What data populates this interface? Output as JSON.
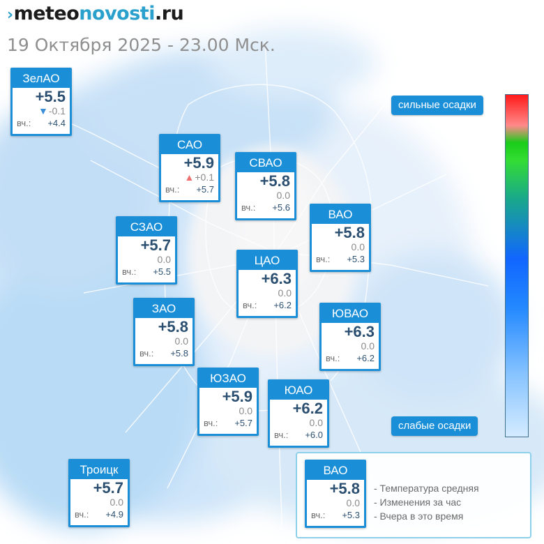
{
  "brand": {
    "mark": "›",
    "part1": "meteo",
    "part2": "novosti",
    "part3": ".ru"
  },
  "datetime": "19 Октября 2025 - 23.00 Мск.",
  "scale": {
    "top_label": "сильные осадки",
    "bottom_label": "слабые осадки"
  },
  "colors": {
    "card_accent": "#1a8fd8",
    "temp_text": "#2b4f70",
    "up_arrow": "#f07070",
    "down_arrow": "#3a8fd8",
    "scale_border": "#3f6f8f",
    "legend_border": "#8ed0ea"
  },
  "districts": [
    {
      "id": "zelao",
      "name": "ЗелАО",
      "temp": "+5.5",
      "trend": "down",
      "trend_icon": "down-triangle-icon",
      "change": "-0.1",
      "yesterday_label": "вч.:",
      "yesterday": "+4.4"
    },
    {
      "id": "sao",
      "name": "САО",
      "temp": "+5.9",
      "trend": "up",
      "trend_icon": "up-triangle-icon",
      "change": "+0.1",
      "yesterday_label": "вч.:",
      "yesterday": "+5.7"
    },
    {
      "id": "svao",
      "name": "СВАО",
      "temp": "+5.8",
      "trend": "none",
      "change": "0.0",
      "yesterday_label": "вч.:",
      "yesterday": "+5.6"
    },
    {
      "id": "szao",
      "name": "СЗАО",
      "temp": "+5.7",
      "trend": "none",
      "change": "0.0",
      "yesterday_label": "вч.:",
      "yesterday": "+5.5"
    },
    {
      "id": "vao",
      "name": "ВАО",
      "temp": "+5.8",
      "trend": "none",
      "change": "0.0",
      "yesterday_label": "вч.:",
      "yesterday": "+5.3"
    },
    {
      "id": "cao",
      "name": "ЦАО",
      "temp": "+6.3",
      "trend": "none",
      "change": "0.0",
      "yesterday_label": "вч.:",
      "yesterday": "+6.2"
    },
    {
      "id": "zao",
      "name": "ЗАО",
      "temp": "+5.8",
      "trend": "none",
      "change": "0.0",
      "yesterday_label": "вч.:",
      "yesterday": "+5.8"
    },
    {
      "id": "yuvao",
      "name": "ЮВАО",
      "temp": "+6.3",
      "trend": "none",
      "change": "0.0",
      "yesterday_label": "вч.:",
      "yesterday": "+6.2"
    },
    {
      "id": "yuzao",
      "name": "ЮЗАО",
      "temp": "+5.9",
      "trend": "none",
      "change": "0.0",
      "yesterday_label": "вч.:",
      "yesterday": "+5.7"
    },
    {
      "id": "yuao",
      "name": "ЮАО",
      "temp": "+6.2",
      "trend": "none",
      "change": "0.0",
      "yesterday_label": "вч.:",
      "yesterday": "+6.0"
    },
    {
      "id": "troitsk",
      "name": "Троицк",
      "temp": "+5.7",
      "trend": "none",
      "change": "0.0",
      "yesterday_label": "вч.:",
      "yesterday": "+4.9"
    }
  ],
  "legend": {
    "sample": {
      "name": "ВАО",
      "temp": "+5.8",
      "change": "0.0",
      "yesterday_label": "вч.:",
      "yesterday": "+5.3"
    },
    "lines": [
      "- Температура средняя",
      "- Изменения за час",
      "- Вчера в это время"
    ]
  }
}
